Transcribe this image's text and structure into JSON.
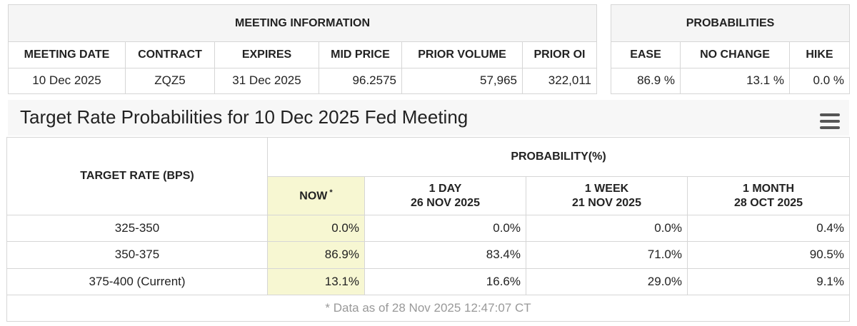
{
  "meeting_info": {
    "title": "MEETING INFORMATION",
    "columns": [
      "MEETING DATE",
      "CONTRACT",
      "EXPIRES",
      "MID PRICE",
      "PRIOR VOLUME",
      "PRIOR OI"
    ],
    "row": [
      "10 Dec 2025",
      "ZQZ5",
      "31 Dec 2025",
      "96.2575",
      "57,965",
      "322,011"
    ]
  },
  "probabilities": {
    "title": "PROBABILITIES",
    "columns": [
      "EASE",
      "NO CHANGE",
      "HIKE"
    ],
    "row": [
      "86.9 %",
      "13.1 %",
      "0.0 %"
    ]
  },
  "chart_title": "Target Rate Probabilities for 10 Dec 2025 Fed Meeting",
  "target_table": {
    "rate_header": "TARGET RATE (BPS)",
    "prob_header": "PROBABILITY(%)",
    "columns": [
      {
        "label": "NOW",
        "note": "*"
      },
      {
        "label": "1 DAY",
        "date": "26 NOV 2025"
      },
      {
        "label": "1 WEEK",
        "date": "21 NOV 2025"
      },
      {
        "label": "1 MONTH",
        "date": "28 OCT 2025"
      }
    ],
    "rows": [
      {
        "rate": "325-350",
        "values": [
          "0.0%",
          "0.0%",
          "0.0%",
          "0.4%"
        ]
      },
      {
        "rate": "350-375",
        "values": [
          "86.9%",
          "83.4%",
          "71.0%",
          "90.5%"
        ]
      },
      {
        "rate": "375-400 (Current)",
        "values": [
          "13.1%",
          "16.6%",
          "29.0%",
          "9.1%"
        ]
      }
    ],
    "footnote": "* Data as of 28 Nov 2025 12:47:07 CT"
  }
}
